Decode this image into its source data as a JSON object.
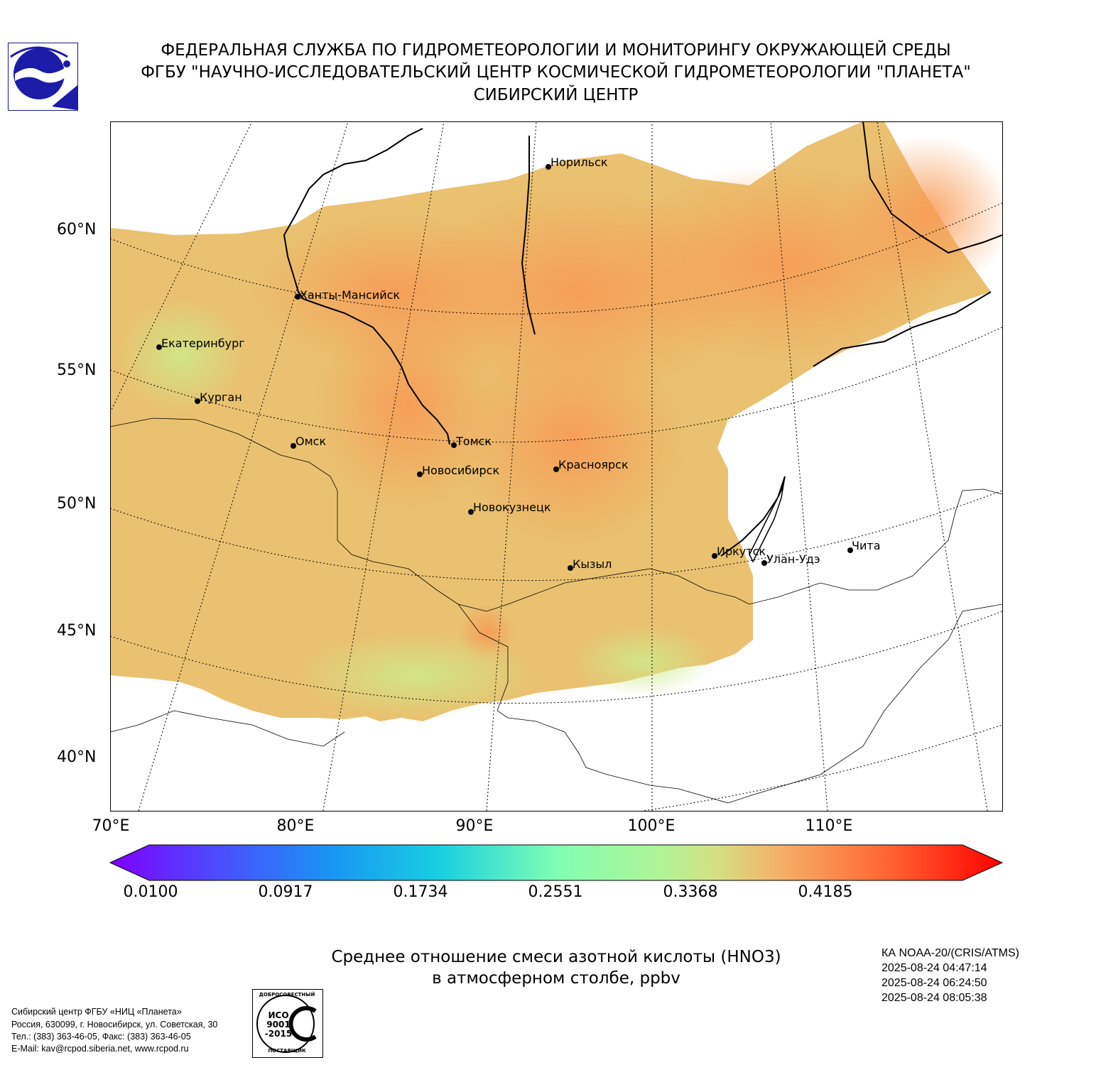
{
  "header": {
    "line1": "ФЕДЕРАЛЬНАЯ СЛУЖБА ПО ГИДРОМЕТЕОРОЛОГИИ И МОНИТОРИНГУ ОКРУЖАЮЩЕЙ СРЕДЫ",
    "line2": "ФГБУ \"НАУЧНО-ИССЛЕДОВАТЕЛЬСКИЙ ЦЕНТР КОСМИЧЕСКОЙ ГИДРОМЕТЕОРОЛОГИИ \"ПЛАНЕТА\"",
    "line3": "СИБИРСКИЙ ЦЕНТР"
  },
  "logo_icon": "planeta-logo-icon",
  "map": {
    "projection": "conic",
    "lat_labels": [
      "60°N",
      "55°N",
      "50°N",
      "45°N",
      "40°N"
    ],
    "lon_labels": [
      "70°E",
      "80°E",
      "90°E",
      "100°E",
      "110°E"
    ],
    "cities": [
      {
        "name": "Норильск"
      },
      {
        "name": "Ханты-Мансийск"
      },
      {
        "name": "Екатеринбург"
      },
      {
        "name": "Курган"
      },
      {
        "name": "Омск"
      },
      {
        "name": "Томск"
      },
      {
        "name": "Новосибирск"
      },
      {
        "name": "Красноярск"
      },
      {
        "name": "Новокузнецк"
      },
      {
        "name": "Иркутск"
      },
      {
        "name": "Кызыл"
      },
      {
        "name": "Улан-Удэ"
      },
      {
        "name": "Чита"
      }
    ]
  },
  "colorbar": {
    "tick_labels": [
      "0.0100",
      "0.0917",
      "0.1734",
      "0.2551",
      "0.3368",
      "0.4185"
    ],
    "min": 0.01,
    "max": 0.5
  },
  "caption": {
    "line1": "Среднее отношение смеси азотной кислоты (HNO3)",
    "line2": "в атмосферном столбе, ppbv"
  },
  "satellite": {
    "name": "КА NOAA-20/(CRIS/ATMS)",
    "times": [
      "2025-08-24 04:47:14",
      "2025-08-24 06:24:50",
      "2025-08-24 08:05:38"
    ]
  },
  "footer": {
    "lines": [
      "Сибирский центр ФГБУ «НИЦ «Планета»",
      "Россия, 630099, г. Новосибирск, ул. Советская, 30",
      "Тел.: (383) 363-46-05, Факс: (383) 363-46-05",
      "E-Mail: kav@rcpod.siberia.net, www.rcpod.ru"
    ]
  },
  "iso_badge": {
    "top_text": "ДОБРОСОВЕСТНЫЙ",
    "line1": "ИСО",
    "line2": "9001",
    "line3": "-2015",
    "bottom_text": "ПОСТАВЩИК"
  }
}
